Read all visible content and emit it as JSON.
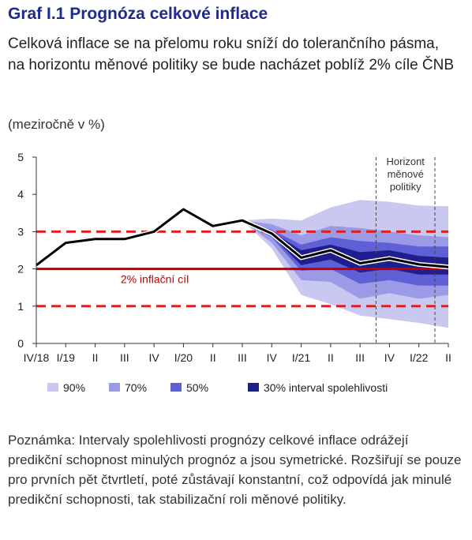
{
  "header": {
    "title": "Graf I.1 Prognóza celkové inflace",
    "subtitle": "Celková inflace se na přelomu roku sníží do tolerančního pásma, na horizontu měnové politiky se bude nacházet poblíž 2% cíle ČNB",
    "unit": "(meziročně v %)"
  },
  "note": "Poznámka: Intervaly spolehlivosti prognózy celkové inflace odrážejí predikční schopnost minulých prognóz a jsou symetrické. Rozšiřují se pouze pro prvních pět čtvrtletí, poté zůstávají konstantní, což odpovídá jak minulé predikční schopnosti, tak stabilizační roli měnové politiky.",
  "chart_data": {
    "type": "area",
    "categories": [
      "IV/18",
      "I/19",
      "II",
      "III",
      "IV",
      "I/20",
      "II",
      "III",
      "IV",
      "I/21",
      "II",
      "III",
      "IV",
      "I/22",
      "II"
    ],
    "ylim": [
      0,
      5
    ],
    "yticks": [
      "0",
      "1",
      "2",
      "3",
      "4",
      "5"
    ],
    "series": [
      {
        "values": [
          2.1,
          2.7,
          2.8,
          2.8,
          3.0,
          3.6,
          3.15,
          3.3,
          2.95,
          2.3,
          2.5,
          2.15,
          2.28,
          2.12,
          2.05
        ]
      }
    ],
    "forecast_start_index": 7,
    "bands": [
      {
        "name": "90%",
        "color": "#c8c8f0",
        "lower": [
          3.3,
          2.55,
          1.3,
          1.05,
          0.75,
          0.65,
          0.55,
          0.42
        ],
        "upper": [
          3.3,
          3.35,
          3.3,
          3.65,
          3.85,
          3.8,
          3.7,
          3.68
        ]
      },
      {
        "name": "70%",
        "color": "#9a9ae6",
        "lower": [
          3.3,
          2.7,
          1.7,
          1.65,
          1.2,
          1.35,
          1.2,
          1.3
        ],
        "upper": [
          3.3,
          3.2,
          2.9,
          3.15,
          3.1,
          3.0,
          2.9,
          2.85
        ]
      },
      {
        "name": "50%",
        "color": "#5f5fd6",
        "lower": [
          3.3,
          2.85,
          1.95,
          2.0,
          1.6,
          1.7,
          1.55,
          1.55
        ],
        "upper": [
          3.3,
          3.05,
          2.65,
          2.85,
          2.75,
          2.7,
          2.6,
          2.6
        ]
      },
      {
        "name": "30% interval spolehlivosti",
        "color": "#1e1e8c",
        "lower": [
          3.3,
          2.9,
          2.1,
          2.25,
          1.9,
          2.0,
          1.85,
          1.85
        ],
        "upper": [
          3.3,
          3.0,
          2.5,
          2.65,
          2.45,
          2.5,
          2.35,
          2.3
        ]
      }
    ],
    "target": 2,
    "target_label": "2% inflační cíl",
    "tolerance_band": [
      1,
      3
    ],
    "horizon_label": [
      "Horizont",
      "měnové",
      "politiky"
    ],
    "horizon_indices": [
      12,
      14
    ],
    "colors": {
      "line": "#000000",
      "target": "#c00000",
      "tolerance": "#e02020"
    }
  }
}
